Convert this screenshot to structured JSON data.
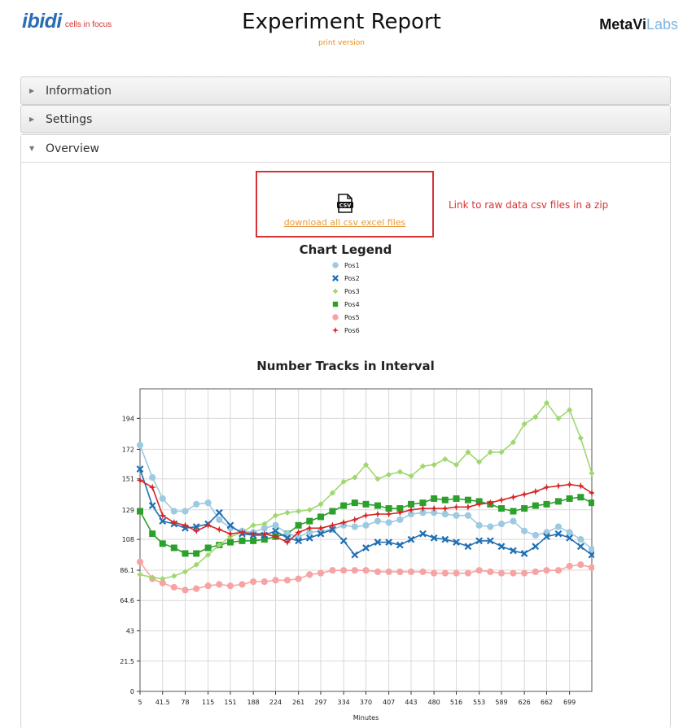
{
  "header": {
    "brand": "ibidi",
    "brand_tagline": "cells in focus",
    "title": "Experiment Report",
    "subtitle": "print version",
    "partner_a": "MetaVi",
    "partner_b": "Labs"
  },
  "panels": [
    {
      "label": "Information",
      "expanded": false
    },
    {
      "label": "Settings",
      "expanded": false
    },
    {
      "label": "Overview",
      "expanded": true
    }
  ],
  "download": {
    "icon": "csv-file-icon",
    "icon_text": "CSV",
    "link_label": "download all csv excel files",
    "annotation": "Link to raw data csv files in a zip",
    "annotation_color": "#d93232",
    "link_color": "#e79b3d"
  },
  "legend": {
    "title": "Chart Legend",
    "items": [
      {
        "name": "Pos1",
        "marker": "circle",
        "color": "#9ecae1"
      },
      {
        "name": "Pos2",
        "marker": "x",
        "color": "#1f6fb4"
      },
      {
        "name": "Pos3",
        "marker": "diamond",
        "color": "#9fd86e"
      },
      {
        "name": "Pos4",
        "marker": "square",
        "color": "#2ca02c"
      },
      {
        "name": "Pos5",
        "marker": "circle",
        "color": "#f8a3a3"
      },
      {
        "name": "Pos6",
        "marker": "star",
        "color": "#d62728"
      }
    ]
  },
  "chart_data": {
    "type": "line",
    "title": "Number Tracks in Interval",
    "xlabel": "Minutes",
    "ylabel": "",
    "xlim": [
      5,
      735
    ],
    "ylim": [
      0,
      215
    ],
    "x_ticks": [
      "5",
      "41.5",
      "78",
      "115",
      "151",
      "188",
      "224",
      "261",
      "297",
      "334",
      "370",
      "407",
      "443",
      "480",
      "516",
      "553",
      "589",
      "626",
      "662",
      "699"
    ],
    "y_ticks": [
      0,
      21.5,
      43,
      64.6,
      86.1,
      108,
      129,
      151,
      172,
      194
    ],
    "grid": true,
    "x": [
      5,
      25,
      41.5,
      60,
      78,
      96,
      115,
      133,
      151,
      170,
      188,
      206,
      224,
      243,
      261,
      279,
      297,
      316,
      334,
      352,
      370,
      389,
      407,
      425,
      443,
      462,
      480,
      498,
      516,
      535,
      553,
      571,
      589,
      608,
      626,
      644,
      662,
      681,
      699,
      717,
      735
    ],
    "series": [
      {
        "name": "Pos1",
        "color": "#9ecae1",
        "marker": "circle",
        "values": [
          175,
          152,
          137,
          128,
          128,
          133,
          134,
          122,
          116,
          114,
          113,
          116,
          118,
          112,
          110,
          113,
          114,
          115,
          118,
          117,
          118,
          121,
          120,
          122,
          126,
          127,
          127,
          126,
          125,
          125,
          118,
          117,
          119,
          121,
          114,
          111,
          113,
          117,
          113,
          108,
          101
        ]
      },
      {
        "name": "Pos2",
        "color": "#1f6fb4",
        "marker": "x",
        "values": [
          158,
          132,
          121,
          119,
          116,
          117,
          119,
          127,
          118,
          112,
          111,
          111,
          114,
          109,
          107,
          109,
          112,
          115,
          107,
          97,
          102,
          106,
          106,
          104,
          108,
          112,
          109,
          108,
          106,
          103,
          107,
          107,
          103,
          100,
          98,
          103,
          110,
          112,
          109,
          103,
          97
        ]
      },
      {
        "name": "Pos3",
        "color": "#9fd86e",
        "marker": "diamond",
        "values": [
          83,
          81,
          80,
          82,
          85,
          90,
          97,
          104,
          110,
          113,
          118,
          119,
          125,
          127,
          128,
          129,
          133,
          141,
          149,
          152,
          161,
          151,
          154,
          156,
          153,
          160,
          161,
          165,
          161,
          170,
          163,
          170,
          170,
          177,
          190,
          195,
          205,
          194,
          200,
          180,
          155
        ]
      },
      {
        "name": "Pos4",
        "color": "#2ca02c",
        "marker": "square",
        "values": [
          128,
          112,
          105,
          102,
          98,
          98,
          102,
          104,
          106,
          107,
          107,
          108,
          110,
          112,
          118,
          121,
          124,
          128,
          132,
          134,
          133,
          132,
          130,
          130,
          133,
          134,
          137,
          136,
          137,
          136,
          135,
          133,
          130,
          128,
          130,
          132,
          133,
          135,
          137,
          138,
          134
        ]
      },
      {
        "name": "Pos5",
        "color": "#f8a3a3",
        "marker": "circle",
        "values": [
          92,
          80,
          77,
          74,
          72,
          73,
          75,
          76,
          75,
          76,
          78,
          78,
          79,
          79,
          80,
          83,
          84,
          86,
          86,
          86,
          86,
          85,
          85,
          85,
          85,
          85,
          84,
          84,
          84,
          84,
          86,
          85,
          84,
          84,
          84,
          85,
          86,
          86,
          89,
          90,
          88
        ]
      },
      {
        "name": "Pos6",
        "color": "#d62728",
        "marker": "star",
        "values": [
          150,
          145,
          125,
          120,
          118,
          114,
          118,
          115,
          112,
          113,
          112,
          112,
          110,
          106,
          113,
          116,
          116,
          118,
          120,
          122,
          125,
          126,
          126,
          127,
          129,
          130,
          130,
          130,
          131,
          131,
          133,
          134,
          136,
          138,
          140,
          142,
          145,
          146,
          147,
          146,
          141
        ]
      }
    ]
  }
}
